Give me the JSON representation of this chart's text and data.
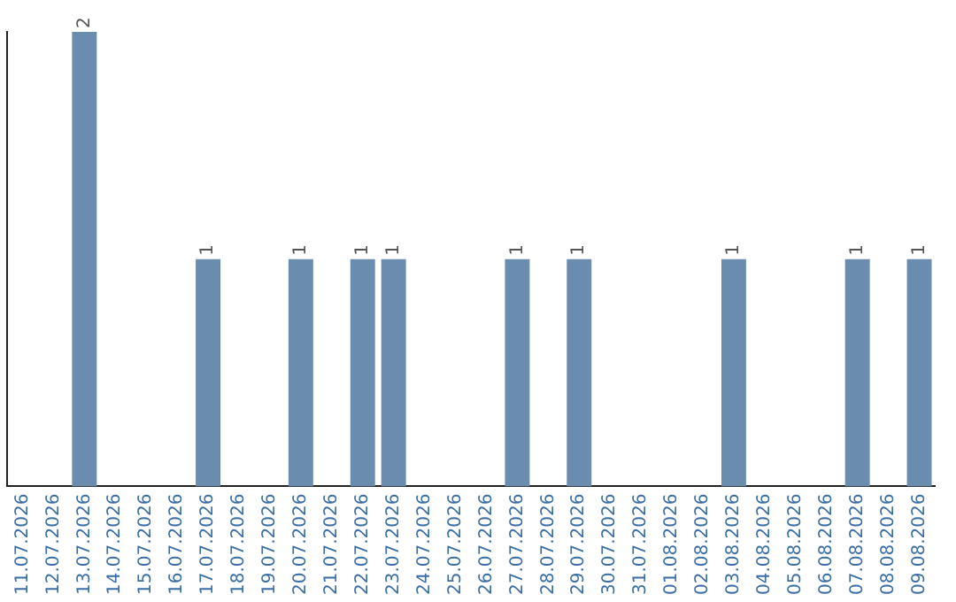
{
  "chart_data": {
    "type": "bar",
    "categories": [
      "11.07.2026",
      "12.07.2026",
      "13.07.2026",
      "14.07.2026",
      "15.07.2026",
      "16.07.2026",
      "17.07.2026",
      "18.07.2026",
      "19.07.2026",
      "20.07.2026",
      "21.07.2026",
      "22.07.2026",
      "23.07.2026",
      "24.07.2026",
      "25.07.2026",
      "26.07.2026",
      "27.07.2026",
      "28.07.2026",
      "29.07.2026",
      "30.07.2026",
      "31.07.2026",
      "01.08.2026",
      "02.08.2026",
      "03.08.2026",
      "04.08.2026",
      "05.08.2026",
      "06.08.2026",
      "07.08.2026",
      "08.08.2026",
      "09.08.2026"
    ],
    "values": [
      0,
      0,
      2,
      0,
      0,
      0,
      1,
      0,
      0,
      1,
      0,
      1,
      1,
      0,
      0,
      0,
      1,
      0,
      1,
      0,
      0,
      0,
      0,
      1,
      0,
      0,
      0,
      1,
      0,
      1
    ],
    "value_labels": [
      null,
      null,
      "2",
      null,
      null,
      null,
      "1",
      null,
      null,
      "1",
      null,
      "1",
      "1",
      null,
      null,
      null,
      "1",
      null,
      "1",
      null,
      null,
      null,
      null,
      "1",
      null,
      null,
      null,
      "1",
      null,
      "1"
    ],
    "color": "#6a8caf",
    "grid": false,
    "legend": false
  }
}
